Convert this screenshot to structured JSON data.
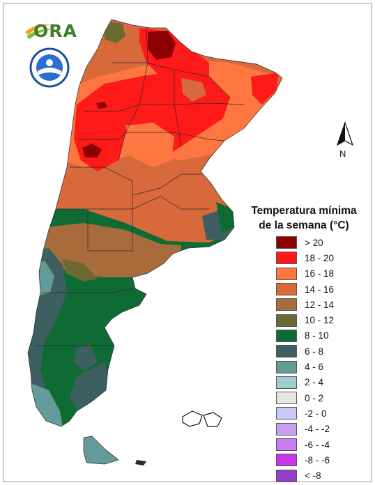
{
  "logos": {
    "ora": {
      "text": "ORA",
      "color": "#3e7d2c"
    },
    "smn": {
      "icon": "smn-seal-icon"
    }
  },
  "north_arrow": {
    "label": "N",
    "icon": "north-arrow-icon"
  },
  "legend": {
    "title_line1": "Temperatura mínima",
    "title_line2": "de la semana (°C)",
    "classes": [
      {
        "label": "> 20",
        "color": "#8b0000"
      },
      {
        "label": "18 - 20",
        "color": "#ff1a1a"
      },
      {
        "label": "16 - 18",
        "color": "#ff7740"
      },
      {
        "label": "14 - 16",
        "color": "#d8693a"
      },
      {
        "label": "12 - 14",
        "color": "#a86b3c"
      },
      {
        "label": "10 - 12",
        "color": "#6a6a30"
      },
      {
        "label": "8 - 10",
        "color": "#0f6b34"
      },
      {
        "label": "6 - 8",
        "color": "#3d5f5f"
      },
      {
        "label": "4 - 6",
        "color": "#639a9a"
      },
      {
        "label": "2 - 4",
        "color": "#9dd0cc"
      },
      {
        "label": "0 - 2",
        "color": "#e8e6e3"
      },
      {
        "label": "-2 - 0",
        "color": "#c9c9f6"
      },
      {
        "label": "-4 - -2",
        "color": "#c39ef1"
      },
      {
        "label": "-6 - -4",
        "color": "#c97cf1"
      },
      {
        "label": "-8 - -6",
        "color": "#c836ed"
      },
      {
        "label": "< -8",
        "color": "#9640c6"
      }
    ]
  }
}
